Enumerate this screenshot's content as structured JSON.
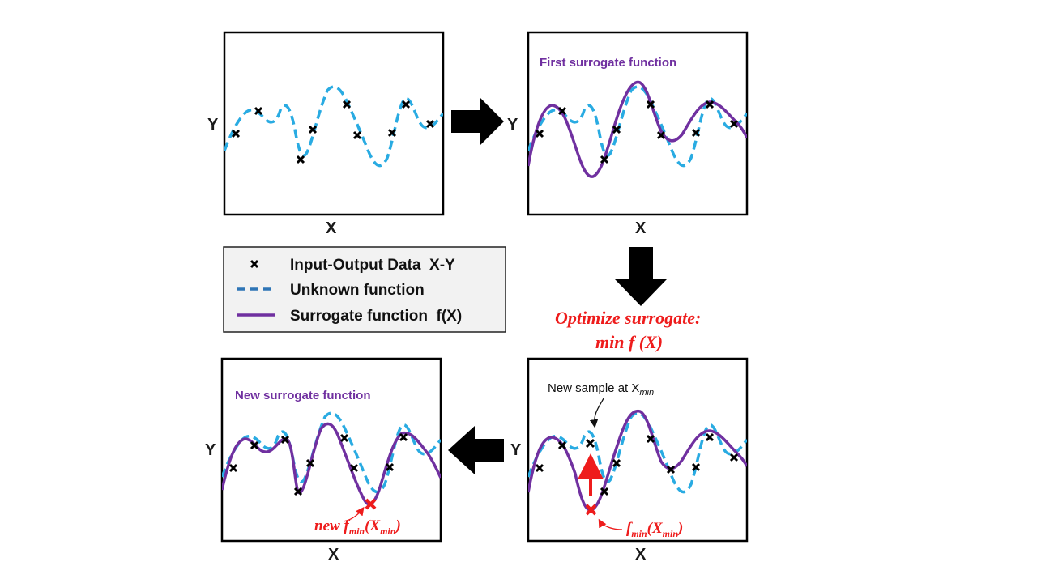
{
  "axes": {
    "x_label": "X",
    "y_label": "Y"
  },
  "panels": {
    "panel1": {
      "title": ""
    },
    "panel2": {
      "title": "First surrogate function"
    },
    "panel3": {
      "title": "New surrogate function"
    },
    "panel4": {
      "title": ""
    }
  },
  "legend": {
    "items": [
      {
        "marker": "x-marker",
        "label": "Input-Output Data  X-Y"
      },
      {
        "marker": "dashed-line",
        "label": "Unknown function",
        "color": "#29abe2"
      },
      {
        "marker": "solid-line",
        "label": "Surrogate function  f(X)",
        "color": "#7030a0"
      }
    ]
  },
  "optimize_label": {
    "line1": "Optimize surrogate:",
    "line2": "min f (X)"
  },
  "annotations": {
    "new_sample": "New sample at X",
    "new_sample_sub": "min",
    "fmin_label": "f",
    "fmin_sub": "min",
    "fmin_arg": "(X",
    "fmin_arg_sub": "min",
    "fmin_close": ")",
    "new_fmin_prefix": "new f"
  },
  "colors": {
    "unknown": "#29abe2",
    "surrogate": "#7030a0",
    "highlight": "#ee1c1c",
    "arrow": "#000000",
    "legend_bg": "#f2f2f2"
  }
}
